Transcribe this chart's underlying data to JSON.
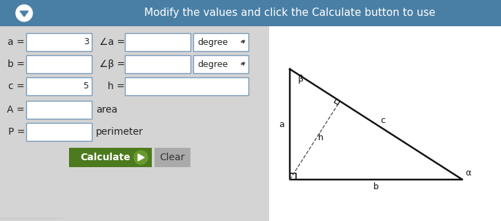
{
  "title_text": "Modify the values and click the Calculate button to use",
  "title_bg": "#4a7fa5",
  "title_text_color": "#ffffff",
  "title_font_size": 11,
  "body_bg": "#d4d4d4",
  "input_bg": "#ffffff",
  "input_border": "#7799bb",
  "calc_btn_color": "#4d7a1e",
  "calc_btn_text": "Calculate",
  "calc_btn_text_color": "#ffffff",
  "clear_btn_color": "#aaaaaa",
  "clear_btn_text": "Clear",
  "clear_btn_text_color": "#333333",
  "bottom_line_color": "#cccccc"
}
